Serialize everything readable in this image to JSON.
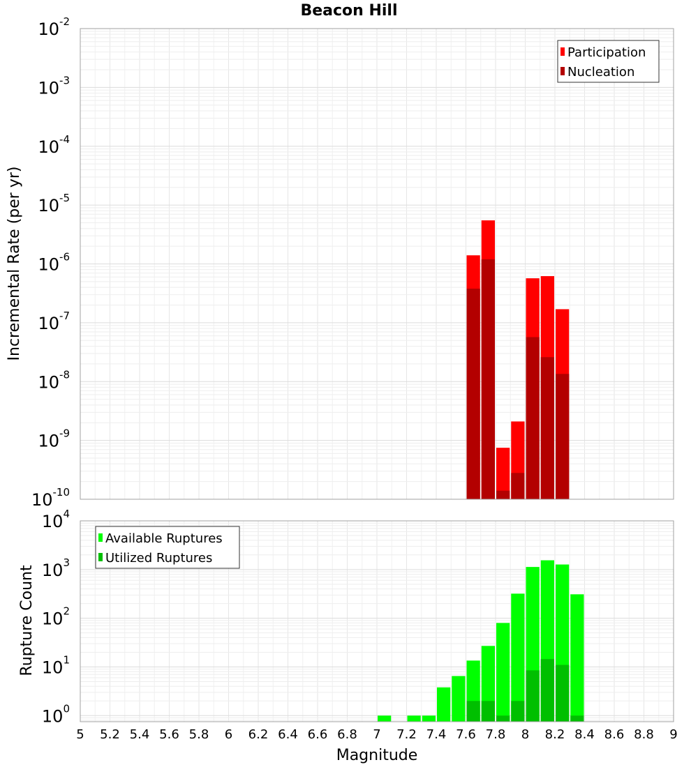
{
  "chart_data": [
    {
      "type": "bar",
      "title": "Beacon Hill",
      "xlabel": "",
      "ylabel": "Incremental Rate (per yr)",
      "yscale": "log",
      "ylim": [
        1e-10,
        0.01
      ],
      "xlim": [
        5,
        9
      ],
      "bin_width": 0.1,
      "grid": true,
      "legend_position": "top-right",
      "y_ticks": [
        {
          "base": "10",
          "exp": "-2",
          "value": 0.01
        },
        {
          "base": "10",
          "exp": "-3",
          "value": 0.001
        },
        {
          "base": "10",
          "exp": "-4",
          "value": 0.0001
        },
        {
          "base": "10",
          "exp": "-5",
          "value": 1e-05
        },
        {
          "base": "10",
          "exp": "-6",
          "value": 1e-06
        },
        {
          "base": "10",
          "exp": "-7",
          "value": 1e-07
        },
        {
          "base": "10",
          "exp": "-8",
          "value": 1e-08
        },
        {
          "base": "10",
          "exp": "-9",
          "value": 1e-09
        },
        {
          "base": "10",
          "exp": "-10",
          "value": 1e-10
        }
      ],
      "series": [
        {
          "name": "Participation",
          "color": "#ff0000",
          "x": [
            7.65,
            7.75,
            7.85,
            7.95,
            8.05,
            8.15,
            8.25
          ],
          "values": [
            1.4e-06,
            5.5e-06,
            7.5e-10,
            2.1e-09,
            5.7e-07,
            6.2e-07,
            1.7e-07
          ]
        },
        {
          "name": "Nucleation",
          "color": "#b30000",
          "x": [
            7.65,
            7.75,
            7.85,
            7.95,
            8.05,
            8.15,
            8.25
          ],
          "values": [
            3.8e-07,
            1.2e-06,
            1.4e-10,
            2.8e-10,
            5.7e-08,
            2.6e-08,
            1.35e-08
          ]
        }
      ]
    },
    {
      "type": "bar",
      "title": "",
      "xlabel": "Magnitude",
      "ylabel": "Rupture Count",
      "yscale": "log",
      "ylim": [
        0.75,
        10000
      ],
      "xlim": [
        5,
        9
      ],
      "bin_width": 0.1,
      "grid": true,
      "legend_position": "top-left",
      "x_ticks": [
        "5",
        "5.2",
        "5.4",
        "5.6",
        "5.8",
        "6",
        "6.2",
        "6.4",
        "6.6",
        "6.8",
        "7",
        "7.2",
        "7.4",
        "7.6",
        "7.8",
        "8",
        "8.2",
        "8.4",
        "8.6",
        "8.8",
        "9"
      ],
      "y_ticks": [
        {
          "base": "10",
          "exp": "4",
          "value": 10000
        },
        {
          "base": "10",
          "exp": "3",
          "value": 1000
        },
        {
          "base": "10",
          "exp": "2",
          "value": 100
        },
        {
          "base": "10",
          "exp": "1",
          "value": 10
        },
        {
          "base": "10",
          "exp": "0",
          "value": 1
        }
      ],
      "series": [
        {
          "name": "Available Ruptures",
          "color": "#00ff00",
          "x": [
            7.05,
            7.25,
            7.35,
            7.45,
            7.55,
            7.65,
            7.75,
            7.85,
            7.95,
            8.05,
            8.15,
            8.25,
            8.35
          ],
          "values": [
            1,
            1,
            1,
            3.8,
            6.5,
            13.5,
            27,
            80,
            320,
            1130,
            1550,
            1270,
            310
          ]
        },
        {
          "name": "Utilized Ruptures",
          "color": "#00bf00",
          "x": [
            7.65,
            7.75,
            7.85,
            7.95,
            8.05,
            8.15,
            8.25,
            8.35
          ],
          "values": [
            2,
            2,
            1,
            2,
            8.5,
            14.5,
            11,
            1
          ]
        }
      ]
    }
  ]
}
